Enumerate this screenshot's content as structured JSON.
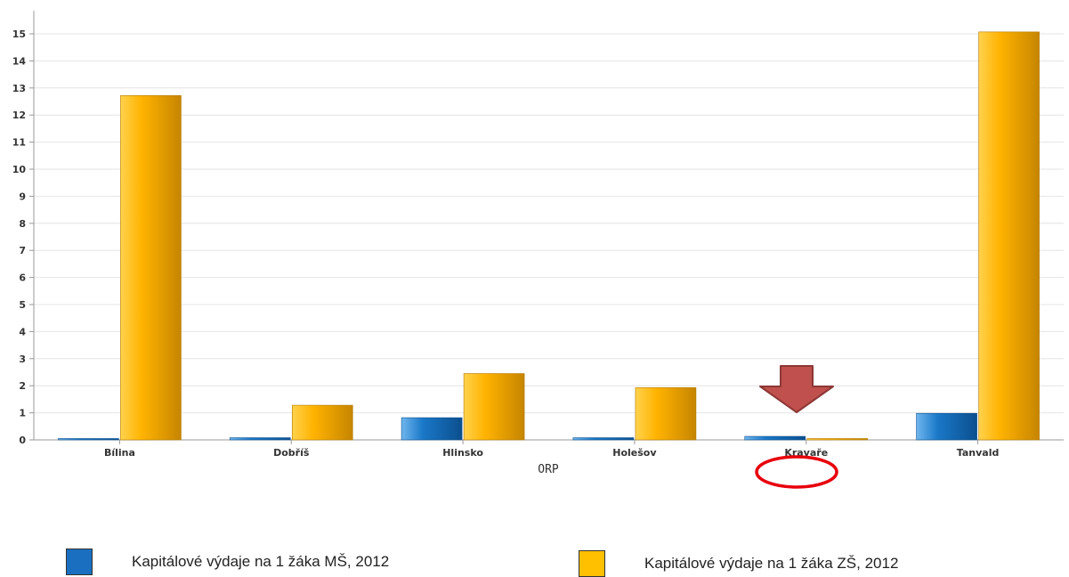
{
  "chart_data": {
    "type": "bar",
    "title": "",
    "xlabel": "ORP",
    "ylabel": "",
    "categories": [
      "Bílina",
      "Dobříš",
      "Hlinsko",
      "Holešov",
      "Kravaře",
      "Tanvald"
    ],
    "series": [
      {
        "name": "Kapitálové výdaje na 1 žáka MŠ, 2012",
        "color": "#1a6fc0",
        "values": [
          0.03,
          0.08,
          0.82,
          0.08,
          0.13,
          0.98
        ]
      },
      {
        "name": "Kapitálové výdaje na 1 žáka ZŠ, 2012",
        "color": "#ffb400",
        "values": [
          12.72,
          1.28,
          2.45,
          1.93,
          0.03,
          15.07
        ]
      }
    ],
    "yticks": [
      0,
      1,
      2,
      3,
      4,
      5,
      6,
      7,
      8,
      9,
      10,
      11,
      12,
      13,
      14,
      15
    ],
    "ylim": [
      0,
      15
    ],
    "grid": true,
    "legend_position": "bottom",
    "annotations": [
      {
        "type": "arrow",
        "color": "#c0504d",
        "target": "Kravaře"
      },
      {
        "type": "ellipse",
        "color": "#e00000",
        "target": "Kravaře"
      }
    ]
  }
}
